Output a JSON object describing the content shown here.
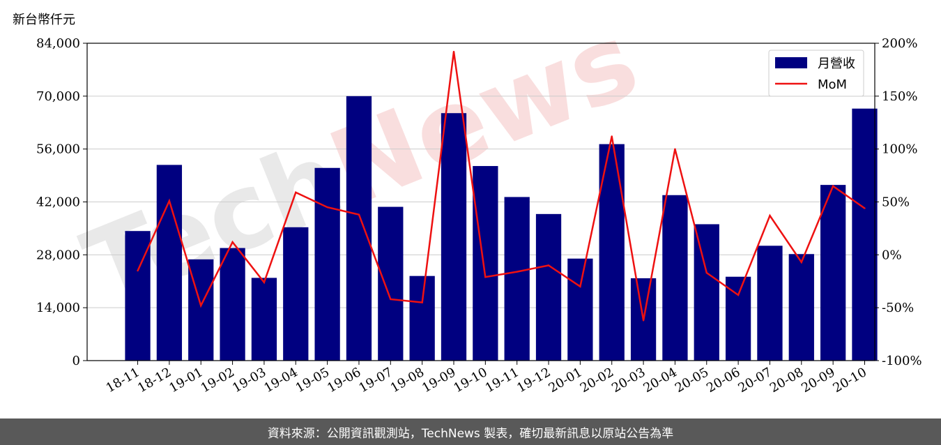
{
  "y_unit_label": "新台幣仟元",
  "footer_text": "資料來源：公開資訊觀測站，TechNews 製表，確切最新訊息以原站公告為準",
  "watermark": "TechNews",
  "colors": {
    "bar": "#000080",
    "line": "#ee1111",
    "grid": "#cccccc",
    "footer_bg": "#595959",
    "watermark_gray": "#e9e9e9",
    "watermark_red": "#f9dede"
  },
  "chart_data": {
    "type": "bar",
    "categories": [
      "18-11",
      "18-12",
      "19-01",
      "19-02",
      "19-03",
      "19-04",
      "19-05",
      "19-06",
      "19-07",
      "19-08",
      "19-09",
      "19-10",
      "19-11",
      "19-12",
      "20-01",
      "20-02",
      "20-03",
      "20-04",
      "20-05",
      "20-06",
      "20-07",
      "20-08",
      "20-09",
      "20-10"
    ],
    "series": [
      {
        "name": "月營收",
        "type": "bar",
        "axis": "left",
        "values": [
          34300,
          51800,
          26800,
          29800,
          21900,
          35300,
          51000,
          70000,
          40700,
          22400,
          65500,
          51500,
          43300,
          38800,
          27000,
          57300,
          21800,
          43800,
          36100,
          22200,
          30400,
          28200,
          46500,
          66700
        ]
      },
      {
        "name": "MoM",
        "type": "line",
        "axis": "right",
        "unit": "%",
        "values": [
          -15,
          51,
          -48,
          12,
          -26,
          59,
          45,
          38,
          -42,
          -45,
          192,
          -21,
          -16,
          -10,
          -30,
          112,
          -62,
          100,
          -17,
          -38,
          37,
          -7,
          65,
          44
        ]
      }
    ],
    "ylim_left": [
      0,
      84000
    ],
    "yticks_left": [
      "0",
      "14,000",
      "28,000",
      "42,000",
      "56,000",
      "70,000",
      "84,000"
    ],
    "ylim_right": [
      -100,
      200
    ],
    "yticks_right": [
      "-100%",
      "-50%",
      "0%",
      "50%",
      "100%",
      "150%",
      "200%"
    ],
    "grid": true,
    "legend": "top-right"
  }
}
